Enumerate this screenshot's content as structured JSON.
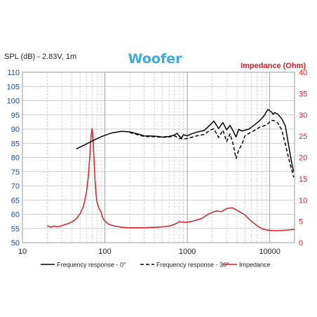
{
  "chart_data": {
    "type": "line",
    "title": "Woofer",
    "left_axis_label": "SPL (dB) - 2.83V, 1m",
    "right_axis_label": "Impedance (Ohm)",
    "x_scale": "log",
    "xlim": [
      10,
      20000
    ],
    "x_ticks": [
      10,
      100,
      1000,
      10000
    ],
    "x_tick_labels": [
      "10",
      "100",
      "1000",
      "10000"
    ],
    "y_left_lim": [
      50,
      110
    ],
    "y_left_ticks": [
      50,
      55,
      60,
      65,
      70,
      75,
      80,
      85,
      90,
      95,
      100,
      105,
      110
    ],
    "y_right_lim": [
      0,
      40
    ],
    "y_right_ticks": [
      0,
      5,
      10,
      15,
      20,
      25,
      30,
      35,
      40
    ],
    "grid": true,
    "legend_position": "bottom",
    "colors": {
      "spl": "#000000",
      "impedance": "#d21f26",
      "title": "#3aabe0",
      "right_axis": "#d21f26",
      "left_axis": "#1a4a8a"
    },
    "series": [
      {
        "name": "Frequency response - 0°",
        "axis": "left",
        "style": "solid",
        "x": [
          45,
          55,
          70,
          90,
          120,
          160,
          200,
          250,
          300,
          400,
          500,
          600,
          700,
          750,
          800,
          850,
          900,
          1000,
          1100,
          1300,
          1600,
          1900,
          2100,
          2400,
          2700,
          3000,
          3300,
          3600,
          3900,
          4200,
          4600,
          5000,
          5600,
          6500,
          7500,
          8500,
          9500,
          10500,
          11000,
          11500,
          12500,
          14000,
          15500,
          17000,
          18500,
          19500
        ],
        "y": [
          83,
          84.2,
          85.8,
          87.3,
          88.6,
          89.2,
          89.0,
          88.3,
          87.6,
          87.5,
          87.2,
          87.4,
          87.9,
          88.5,
          87.5,
          86.9,
          88.0,
          87.6,
          88.2,
          88.9,
          89.5,
          91.5,
          92.8,
          90.2,
          92.3,
          89.7,
          91.3,
          89.3,
          87.2,
          89.9,
          89.3,
          89.6,
          90.0,
          91.4,
          92.9,
          94.6,
          96.9,
          96.0,
          95.2,
          95.8,
          95.3,
          93.6,
          91.0,
          84.0,
          78.0,
          75.0
        ]
      },
      {
        "name": "Frequency response - 30°",
        "axis": "left",
        "style": "dashed",
        "x": [
          200,
          250,
          300,
          400,
          500,
          600,
          700,
          800,
          900,
          1000,
          1100,
          1300,
          1600,
          1900,
          2100,
          2400,
          2700,
          3000,
          3300,
          3600,
          3900,
          4200,
          4600,
          5000,
          5600,
          6500,
          7500,
          8500,
          9500,
          10500,
          11500,
          12500,
          14000,
          15500,
          17000,
          18500,
          19500
        ],
        "y": [
          88.8,
          88.0,
          87.4,
          87.3,
          87.1,
          87.2,
          87.6,
          86.7,
          86.5,
          86.7,
          87.0,
          87.6,
          88.1,
          89.6,
          90.1,
          87.0,
          89.6,
          85.6,
          88.3,
          84.6,
          79.6,
          82.6,
          84.6,
          87.6,
          88.5,
          89.5,
          90.6,
          91.1,
          91.9,
          93.1,
          92.9,
          92.2,
          89.6,
          84.6,
          79.6,
          75.6,
          73.0
        ]
      },
      {
        "name": "Impedance",
        "axis": "right",
        "style": "solid",
        "x": [
          20,
          22,
          24,
          26,
          28,
          30,
          35,
          40,
          45,
          50,
          55,
          60,
          63,
          66,
          68,
          70,
          72,
          74,
          76,
          78,
          80,
          85,
          90,
          95,
          100,
          110,
          120,
          140,
          160,
          200,
          250,
          300,
          400,
          500,
          600,
          700,
          800,
          900,
          1000,
          1200,
          1500,
          1800,
          2200,
          2600,
          3000,
          3500,
          4000,
          5000,
          6000,
          7000,
          8000,
          9000,
          10000,
          12000,
          15000,
          20000
        ],
        "y": [
          4.0,
          3.6,
          3.9,
          3.7,
          3.8,
          4.0,
          4.4,
          4.9,
          5.6,
          6.8,
          8.5,
          12.0,
          15.5,
          21.0,
          25.0,
          26.8,
          24.0,
          19.0,
          14.5,
          11.5,
          9.6,
          8.0,
          7.2,
          5.6,
          5.1,
          4.4,
          4.1,
          3.8,
          3.6,
          3.5,
          3.5,
          3.5,
          3.6,
          3.7,
          3.9,
          4.3,
          4.9,
          4.8,
          4.8,
          5.1,
          5.7,
          6.7,
          7.4,
          7.3,
          8.0,
          8.2,
          7.6,
          6.5,
          5.0,
          4.0,
          3.3,
          3.0,
          2.9,
          2.8,
          2.9,
          3.1
        ]
      }
    ]
  }
}
